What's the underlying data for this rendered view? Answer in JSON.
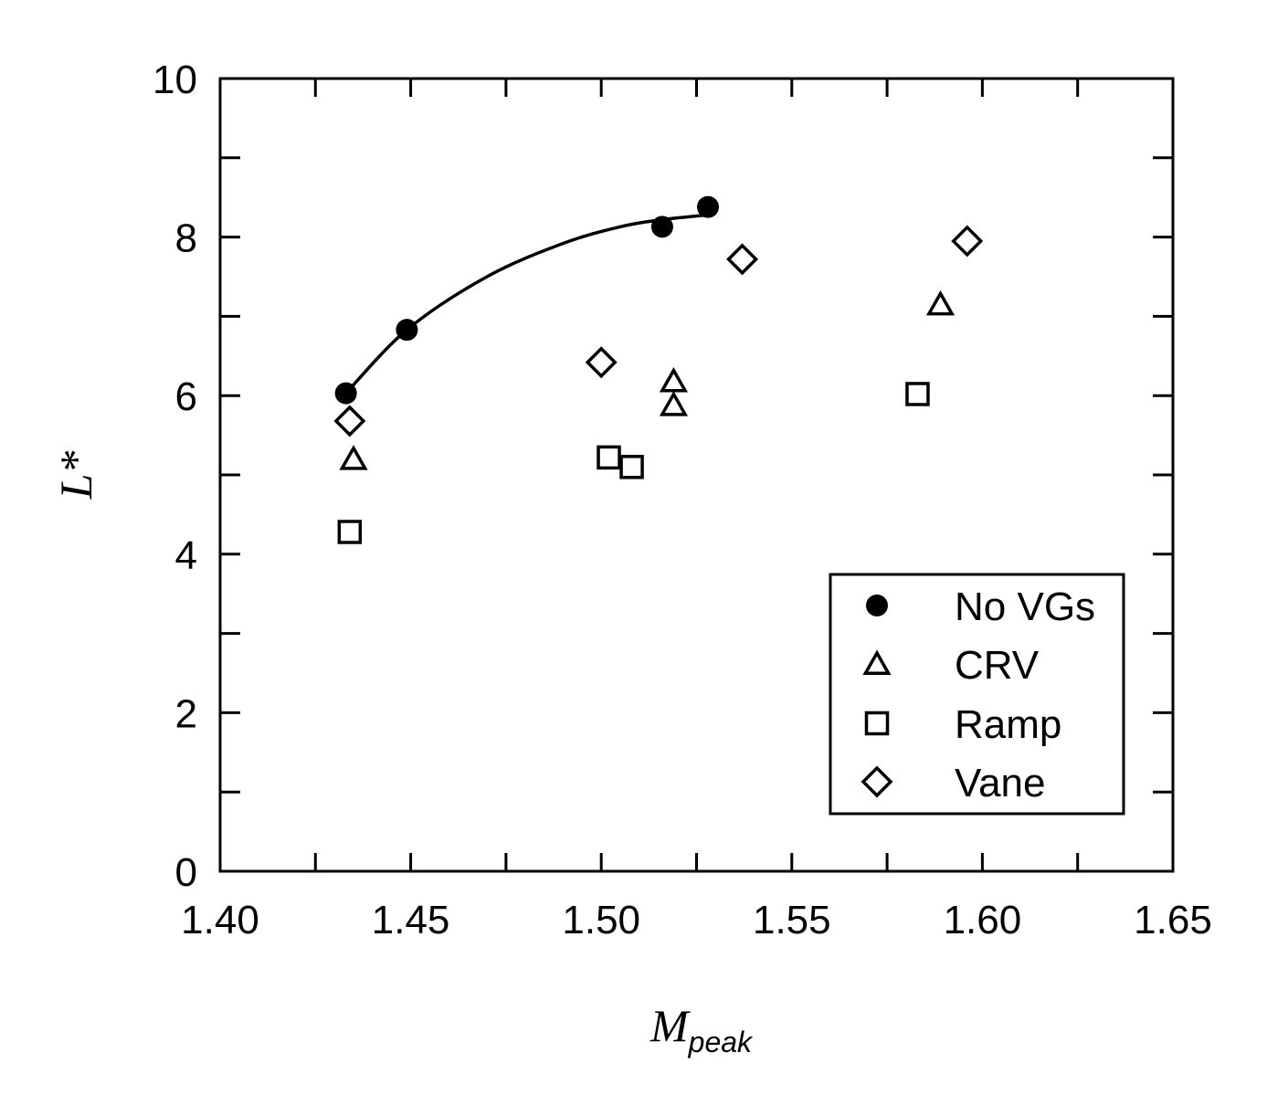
{
  "chart_data": {
    "type": "scatter",
    "title": "",
    "xlabel": "M",
    "xlabel_subscript": "peak",
    "ylabel": "L*",
    "xlim": [
      1.4,
      1.65
    ],
    "ylim": [
      0,
      10
    ],
    "x_ticks": [
      "1.40",
      "1.45",
      "1.50",
      "1.55",
      "1.60",
      "1.65"
    ],
    "y_ticks": [
      "0",
      "2",
      "4",
      "6",
      "8",
      "10"
    ],
    "grid": false,
    "legend_position": "bottom-right",
    "series": [
      {
        "name": "No VGs",
        "marker": "filled-circle",
        "points": [
          [
            1.433,
            6.03
          ],
          [
            1.449,
            6.83
          ],
          [
            1.516,
            8.13
          ],
          [
            1.528,
            8.38
          ]
        ],
        "fit_curve": [
          [
            1.433,
            6.03
          ],
          [
            1.449,
            6.83
          ],
          [
            1.47,
            7.5
          ],
          [
            1.49,
            7.92
          ],
          [
            1.505,
            8.13
          ],
          [
            1.516,
            8.22
          ],
          [
            1.528,
            8.28
          ]
        ]
      },
      {
        "name": "CRV",
        "marker": "open-triangle",
        "points": [
          [
            1.435,
            5.2
          ],
          [
            1.519,
            6.18
          ],
          [
            1.519,
            5.88
          ],
          [
            1.589,
            7.15
          ]
        ]
      },
      {
        "name": "Ramp",
        "marker": "open-square",
        "points": [
          [
            1.434,
            4.28
          ],
          [
            1.502,
            5.22
          ],
          [
            1.508,
            5.1
          ],
          [
            1.583,
            6.02
          ]
        ]
      },
      {
        "name": "Vane",
        "marker": "open-diamond",
        "points": [
          [
            1.434,
            5.68
          ],
          [
            1.5,
            6.42
          ],
          [
            1.537,
            7.72
          ],
          [
            1.596,
            7.95
          ]
        ]
      }
    ]
  }
}
